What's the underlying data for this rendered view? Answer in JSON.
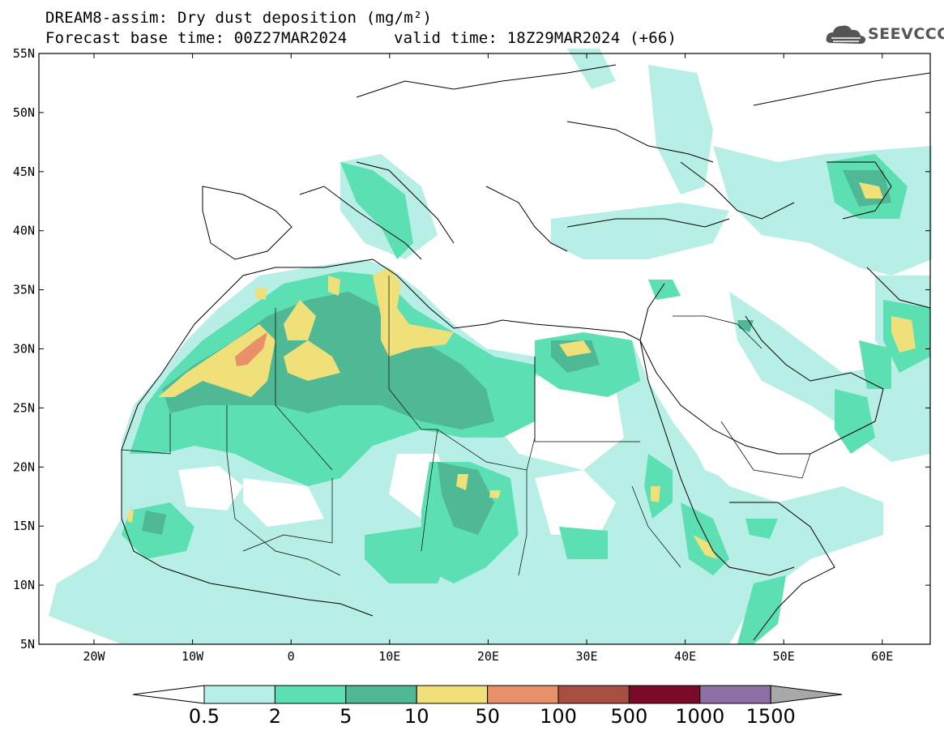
{
  "title": {
    "line1": "DREAM8-assim: Dry dust deposition (mg/m²)",
    "line2": "Forecast base time: 00Z27MAR2024",
    "line3": "valid time: 18Z29MAR2024 (+66)"
  },
  "logo": {
    "text": "SEEVCCC",
    "icon": "cloud-icon"
  },
  "axes": {
    "lat_labels": [
      "55N",
      "50N",
      "45N",
      "40N",
      "35N",
      "30N",
      "25N",
      "20N",
      "15N",
      "10N",
      "5N"
    ],
    "lon_labels": [
      "20W",
      "10W",
      "0",
      "10E",
      "20E",
      "30E",
      "40E",
      "50E",
      "60E"
    ]
  },
  "colorbar": {
    "labels": [
      "0.5",
      "2",
      "5",
      "10",
      "50",
      "100",
      "500",
      "1000",
      "1500"
    ],
    "colors": [
      "#b7efe6",
      "#5cdfb3",
      "#4fb894",
      "#f0e07a",
      "#e8906a",
      "#a84e42",
      "#7a0a28",
      "#8e6fa3",
      "#a8a8a8"
    ],
    "low_arrow_color": "#ffffff",
    "high_arrow_color": "#a8a8a8"
  }
}
